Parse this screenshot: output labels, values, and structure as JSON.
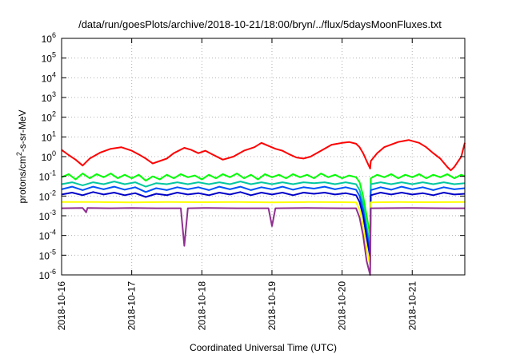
{
  "chart_data": {
    "type": "line",
    "title": "/data/run/goesPlots/archive/2018-10-21/18:00/bryn/../flux/5daysMoonFluxes.txt",
    "xlabel": "Coordinated Universal Time (UTC)",
    "ylabel": "protons/cm²-s-sr-MeV",
    "yscale": "log",
    "ylim": [
      1e-06,
      1000000.0
    ],
    "y_tick_exponents": [
      -6,
      -5,
      -4,
      -3,
      -2,
      -1,
      0,
      1,
      2,
      3,
      4,
      5,
      6
    ],
    "y_tick_base": "10",
    "x_unit": "days since 2018-10-16 00:00 UTC",
    "xlim": [
      0,
      5.75
    ],
    "x_ticks": [
      {
        "x": 0,
        "label": "2018-10-16"
      },
      {
        "x": 1,
        "label": "2018-10-17"
      },
      {
        "x": 2,
        "label": "2018-10-18"
      },
      {
        "x": 3,
        "label": "2018-10-19"
      },
      {
        "x": 4,
        "label": "2018-10-20"
      },
      {
        "x": 5,
        "label": "2018-10-21"
      }
    ],
    "grid": true,
    "legend": "none",
    "series": [
      {
        "color": "#ff0000",
        "points": [
          [
            0,
            2.2
          ],
          [
            0.1,
            1.2
          ],
          [
            0.2,
            0.7
          ],
          [
            0.3,
            0.35
          ],
          [
            0.4,
            0.8
          ],
          [
            0.55,
            1.6
          ],
          [
            0.7,
            2.5
          ],
          [
            0.85,
            3.0
          ],
          [
            1.0,
            2.0
          ],
          [
            1.1,
            1.3
          ],
          [
            1.2,
            0.8
          ],
          [
            1.3,
            0.45
          ],
          [
            1.4,
            0.6
          ],
          [
            1.5,
            0.8
          ],
          [
            1.6,
            1.5
          ],
          [
            1.75,
            2.8
          ],
          [
            1.85,
            2.2
          ],
          [
            1.95,
            1.5
          ],
          [
            2.05,
            2.0
          ],
          [
            2.15,
            1.3
          ],
          [
            2.3,
            0.7
          ],
          [
            2.45,
            1.0
          ],
          [
            2.6,
            2.0
          ],
          [
            2.75,
            3.0
          ],
          [
            2.85,
            5.0
          ],
          [
            2.95,
            3.5
          ],
          [
            3.05,
            2.5
          ],
          [
            3.15,
            2.0
          ],
          [
            3.25,
            1.3
          ],
          [
            3.35,
            0.9
          ],
          [
            3.45,
            0.8
          ],
          [
            3.55,
            1.0
          ],
          [
            3.7,
            2.0
          ],
          [
            3.85,
            4.0
          ],
          [
            4.0,
            5.0
          ],
          [
            4.1,
            5.5
          ],
          [
            4.2,
            4.5
          ],
          [
            4.25,
            3.0
          ],
          [
            4.3,
            1.5
          ],
          [
            4.35,
            0.6
          ],
          [
            4.4,
            0.25
          ],
          [
            4.41,
            0.6
          ],
          [
            4.5,
            1.5
          ],
          [
            4.6,
            3.0
          ],
          [
            4.8,
            5.5
          ],
          [
            4.95,
            7.0
          ],
          [
            5.1,
            5.0
          ],
          [
            5.2,
            3.0
          ],
          [
            5.3,
            1.5
          ],
          [
            5.4,
            0.8
          ],
          [
            5.5,
            0.3
          ],
          [
            5.55,
            0.2
          ],
          [
            5.6,
            0.3
          ],
          [
            5.7,
            1.0
          ],
          [
            5.75,
            5.0
          ]
        ]
      },
      {
        "color": "#00ff00",
        "points": [
          [
            0,
            0.09
          ],
          [
            0.1,
            0.13
          ],
          [
            0.2,
            0.07
          ],
          [
            0.3,
            0.14
          ],
          [
            0.4,
            0.08
          ],
          [
            0.5,
            0.13
          ],
          [
            0.6,
            0.09
          ],
          [
            0.7,
            0.14
          ],
          [
            0.8,
            0.08
          ],
          [
            0.9,
            0.12
          ],
          [
            1.0,
            0.08
          ],
          [
            1.1,
            0.12
          ],
          [
            1.2,
            0.06
          ],
          [
            1.3,
            0.1
          ],
          [
            1.4,
            0.07
          ],
          [
            1.5,
            0.12
          ],
          [
            1.6,
            0.08
          ],
          [
            1.7,
            0.13
          ],
          [
            1.8,
            0.09
          ],
          [
            1.9,
            0.11
          ],
          [
            2.0,
            0.07
          ],
          [
            2.1,
            0.12
          ],
          [
            2.2,
            0.08
          ],
          [
            2.3,
            0.13
          ],
          [
            2.4,
            0.09
          ],
          [
            2.5,
            0.14
          ],
          [
            2.6,
            0.08
          ],
          [
            2.7,
            0.12
          ],
          [
            2.8,
            0.07
          ],
          [
            2.9,
            0.13
          ],
          [
            3.0,
            0.09
          ],
          [
            3.1,
            0.12
          ],
          [
            3.2,
            0.08
          ],
          [
            3.3,
            0.13
          ],
          [
            3.4,
            0.09
          ],
          [
            3.5,
            0.12
          ],
          [
            3.6,
            0.08
          ],
          [
            3.7,
            0.14
          ],
          [
            3.8,
            0.09
          ],
          [
            3.9,
            0.12
          ],
          [
            4.0,
            0.08
          ],
          [
            4.1,
            0.11
          ],
          [
            4.2,
            0.09
          ],
          [
            4.25,
            0.05
          ],
          [
            4.3,
            0.01
          ],
          [
            4.35,
            0.001
          ],
          [
            4.4,
            0.0001
          ],
          [
            4.41,
            0.08
          ],
          [
            4.5,
            0.12
          ],
          [
            4.6,
            0.09
          ],
          [
            4.7,
            0.13
          ],
          [
            4.8,
            0.08
          ],
          [
            4.9,
            0.12
          ],
          [
            5.0,
            0.09
          ],
          [
            5.1,
            0.13
          ],
          [
            5.2,
            0.08
          ],
          [
            5.3,
            0.12
          ],
          [
            5.4,
            0.09
          ],
          [
            5.5,
            0.13
          ],
          [
            5.6,
            0.08
          ],
          [
            5.7,
            0.12
          ],
          [
            5.75,
            0.1
          ]
        ]
      },
      {
        "color": "#00c8a0",
        "points": [
          [
            0,
            0.04
          ],
          [
            0.15,
            0.05
          ],
          [
            0.3,
            0.035
          ],
          [
            0.45,
            0.05
          ],
          [
            0.6,
            0.04
          ],
          [
            0.75,
            0.055
          ],
          [
            0.9,
            0.04
          ],
          [
            1.05,
            0.05
          ],
          [
            1.2,
            0.03
          ],
          [
            1.35,
            0.045
          ],
          [
            1.5,
            0.04
          ],
          [
            1.65,
            0.05
          ],
          [
            1.8,
            0.04
          ],
          [
            1.95,
            0.05
          ],
          [
            2.1,
            0.04
          ],
          [
            2.25,
            0.05
          ],
          [
            2.4,
            0.04
          ],
          [
            2.55,
            0.055
          ],
          [
            2.7,
            0.04
          ],
          [
            2.85,
            0.05
          ],
          [
            3.0,
            0.04
          ],
          [
            3.15,
            0.05
          ],
          [
            3.3,
            0.04
          ],
          [
            3.45,
            0.05
          ],
          [
            3.6,
            0.045
          ],
          [
            3.75,
            0.05
          ],
          [
            3.9,
            0.04
          ],
          [
            4.05,
            0.05
          ],
          [
            4.2,
            0.04
          ],
          [
            4.25,
            0.02
          ],
          [
            4.3,
            0.004
          ],
          [
            4.35,
            0.0003
          ],
          [
            4.4,
            3e-05
          ],
          [
            4.41,
            0.04
          ],
          [
            4.55,
            0.05
          ],
          [
            4.7,
            0.04
          ],
          [
            4.85,
            0.05
          ],
          [
            5.0,
            0.04
          ],
          [
            5.15,
            0.05
          ],
          [
            5.3,
            0.04
          ],
          [
            5.45,
            0.05
          ],
          [
            5.6,
            0.04
          ],
          [
            5.75,
            0.045
          ]
        ]
      },
      {
        "color": "#0050ff",
        "points": [
          [
            0,
            0.022
          ],
          [
            0.15,
            0.03
          ],
          [
            0.3,
            0.02
          ],
          [
            0.45,
            0.03
          ],
          [
            0.6,
            0.022
          ],
          [
            0.75,
            0.03
          ],
          [
            0.9,
            0.021
          ],
          [
            1.05,
            0.028
          ],
          [
            1.2,
            0.016
          ],
          [
            1.35,
            0.025
          ],
          [
            1.5,
            0.02
          ],
          [
            1.65,
            0.028
          ],
          [
            1.8,
            0.022
          ],
          [
            1.95,
            0.028
          ],
          [
            2.1,
            0.02
          ],
          [
            2.25,
            0.03
          ],
          [
            2.4,
            0.022
          ],
          [
            2.55,
            0.03
          ],
          [
            2.7,
            0.02
          ],
          [
            2.85,
            0.028
          ],
          [
            3.0,
            0.022
          ],
          [
            3.15,
            0.03
          ],
          [
            3.3,
            0.021
          ],
          [
            3.45,
            0.028
          ],
          [
            3.6,
            0.024
          ],
          [
            3.75,
            0.03
          ],
          [
            3.9,
            0.022
          ],
          [
            4.05,
            0.028
          ],
          [
            4.2,
            0.021
          ],
          [
            4.25,
            0.01
          ],
          [
            4.3,
            0.002
          ],
          [
            4.35,
            0.00015
          ],
          [
            4.4,
            1.5e-05
          ],
          [
            4.41,
            0.02
          ],
          [
            4.55,
            0.028
          ],
          [
            4.7,
            0.021
          ],
          [
            4.85,
            0.03
          ],
          [
            5.0,
            0.022
          ],
          [
            5.15,
            0.028
          ],
          [
            5.3,
            0.02
          ],
          [
            5.45,
            0.028
          ],
          [
            5.6,
            0.022
          ],
          [
            5.75,
            0.025
          ]
        ]
      },
      {
        "color": "#0000c8",
        "points": [
          [
            0,
            0.012
          ],
          [
            0.15,
            0.015
          ],
          [
            0.3,
            0.011
          ],
          [
            0.45,
            0.016
          ],
          [
            0.6,
            0.012
          ],
          [
            0.75,
            0.015
          ],
          [
            0.9,
            0.011
          ],
          [
            1.05,
            0.014
          ],
          [
            1.2,
            0.009
          ],
          [
            1.35,
            0.013
          ],
          [
            1.5,
            0.011
          ],
          [
            1.65,
            0.015
          ],
          [
            1.8,
            0.012
          ],
          [
            1.95,
            0.014
          ],
          [
            2.1,
            0.011
          ],
          [
            2.25,
            0.015
          ],
          [
            2.4,
            0.012
          ],
          [
            2.55,
            0.016
          ],
          [
            2.7,
            0.011
          ],
          [
            2.85,
            0.015
          ],
          [
            3.0,
            0.012
          ],
          [
            3.15,
            0.015
          ],
          [
            3.3,
            0.011
          ],
          [
            3.45,
            0.015
          ],
          [
            3.6,
            0.013
          ],
          [
            3.75,
            0.015
          ],
          [
            3.9,
            0.012
          ],
          [
            4.05,
            0.014
          ],
          [
            4.2,
            0.011
          ],
          [
            4.25,
            0.005
          ],
          [
            4.3,
            0.001
          ],
          [
            4.35,
            8e-05
          ],
          [
            4.4,
            8e-06
          ],
          [
            4.41,
            0.011
          ],
          [
            4.55,
            0.015
          ],
          [
            4.7,
            0.012
          ],
          [
            4.85,
            0.015
          ],
          [
            5.0,
            0.012
          ],
          [
            5.15,
            0.014
          ],
          [
            5.3,
            0.011
          ],
          [
            5.45,
            0.015
          ],
          [
            5.6,
            0.012
          ],
          [
            5.75,
            0.013
          ]
        ]
      },
      {
        "color": "#ffff00",
        "points": [
          [
            0,
            0.005
          ],
          [
            0.5,
            0.005
          ],
          [
            1.0,
            0.0048
          ],
          [
            1.5,
            0.005
          ],
          [
            2.0,
            0.0049
          ],
          [
            2.5,
            0.005
          ],
          [
            3.0,
            0.0048
          ],
          [
            3.5,
            0.005
          ],
          [
            4.0,
            0.0049
          ],
          [
            4.2,
            0.0048
          ],
          [
            4.25,
            0.002
          ],
          [
            4.3,
            0.0003
          ],
          [
            4.35,
            2e-05
          ],
          [
            4.4,
            3e-06
          ],
          [
            4.41,
            0.0048
          ],
          [
            4.8,
            0.005
          ],
          [
            5.2,
            0.0049
          ],
          [
            5.75,
            0.005
          ]
        ]
      },
      {
        "color": "#903090",
        "points": [
          [
            0,
            0.0024
          ],
          [
            0.3,
            0.0025
          ],
          [
            0.35,
            0.0015
          ],
          [
            0.37,
            0.0025
          ],
          [
            0.7,
            0.0024
          ],
          [
            1.0,
            0.0025
          ],
          [
            1.35,
            0.0024
          ],
          [
            1.5,
            0.0024
          ],
          [
            1.7,
            0.0024
          ],
          [
            1.75,
            3e-05
          ],
          [
            1.8,
            0.0024
          ],
          [
            2.1,
            0.0025
          ],
          [
            2.5,
            0.0024
          ],
          [
            2.95,
            0.0024
          ],
          [
            3.0,
            0.0003
          ],
          [
            3.05,
            0.0024
          ],
          [
            3.5,
            0.0025
          ],
          [
            4.0,
            0.0024
          ],
          [
            4.2,
            0.0024
          ],
          [
            4.25,
            0.0008
          ],
          [
            4.3,
            0.0001
          ],
          [
            4.35,
            5e-06
          ],
          [
            4.4,
            1e-06
          ],
          [
            4.41,
            0.0024
          ],
          [
            5.0,
            0.0025
          ],
          [
            5.5,
            0.0024
          ],
          [
            5.75,
            0.0024
          ]
        ]
      }
    ]
  }
}
